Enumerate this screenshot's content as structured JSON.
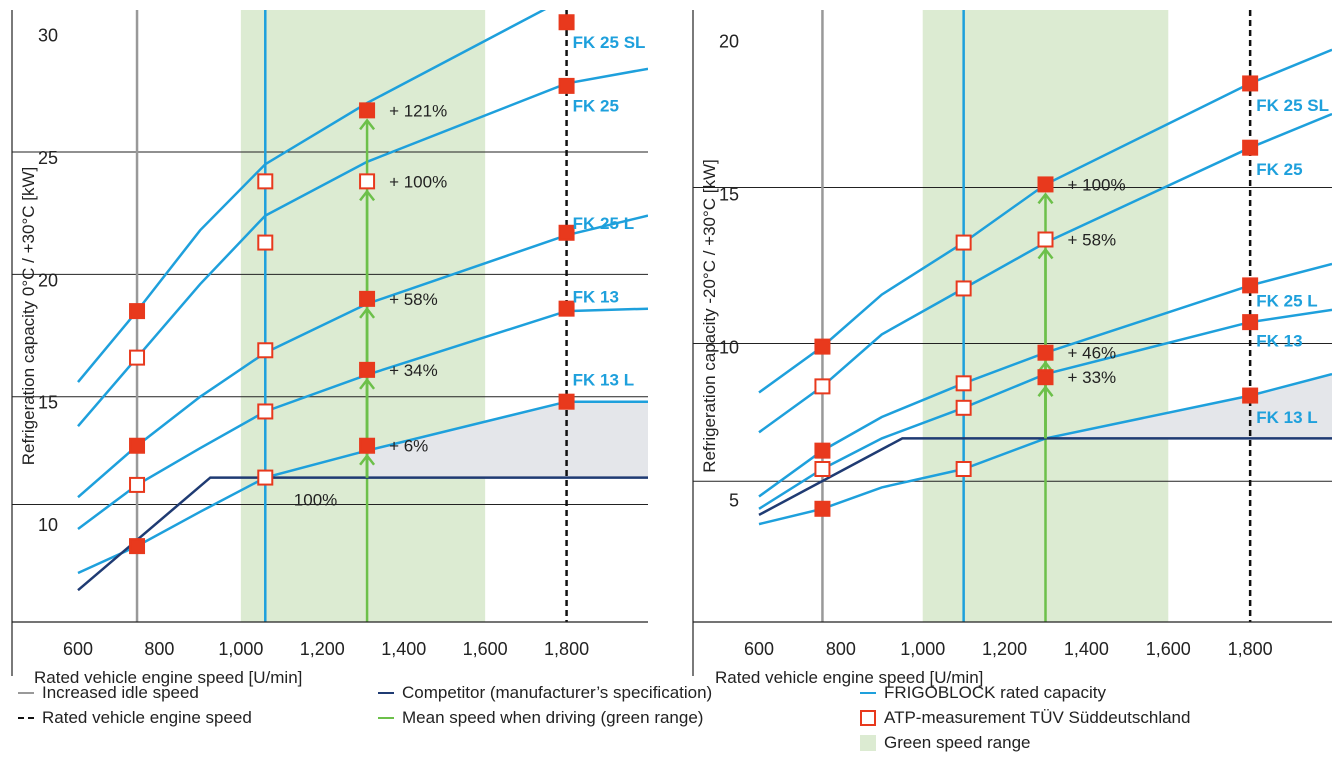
{
  "colors": {
    "frigoblock": "#1ea0dc",
    "competitor": "#1f3b73",
    "idle": "#999999",
    "rated": "#111111",
    "mean": "#6cc04a",
    "marker": "#e8391d",
    "green_range": "#dcebd2",
    "gap_fill": "#e4e6ea",
    "grid": "#222222",
    "label": "#1ea0dc"
  },
  "chart_data": [
    {
      "type": "line",
      "ylabel": "Refrigeration capacity 0°C / +30°C [kW]",
      "xlabel": "Rated vehicle engine speed [U/min]",
      "xlim": [
        450,
        2000
      ],
      "ylim": [
        6,
        31
      ],
      "x_ticks": [
        600,
        800,
        1000,
        1200,
        1400,
        1600,
        1800
      ],
      "x_tick_labels": [
        "600",
        "800",
        "1,000",
        "1,200",
        "1,400",
        "1,600",
        "1,800"
      ],
      "y_ticks": [
        10,
        15,
        20,
        25,
        30
      ],
      "y_tick_labels": [
        "10",
        "15",
        "20",
        "25",
        "30"
      ],
      "hgrid": [
        10.8,
        15.2,
        20.2,
        25.2
      ],
      "green_range": [
        1000,
        1600
      ],
      "idle_speed": 745,
      "mean_speed": 1310,
      "rated_speed": 1800,
      "frigoblock_line": 1060,
      "series": [
        {
          "name": "FK 25 SL",
          "x": [
            600,
            745,
            900,
            1060,
            1310,
            1800,
            2000
          ],
          "y": [
            15.8,
            18.7,
            22.0,
            24.7,
            27.2,
            31.5,
            33.0
          ]
        },
        {
          "name": "FK 25",
          "x": [
            600,
            745,
            900,
            1060,
            1310,
            1800,
            2000
          ],
          "y": [
            14.0,
            16.8,
            19.8,
            22.6,
            24.8,
            28.0,
            28.6
          ]
        },
        {
          "name": "FK 25 L",
          "x": [
            600,
            745,
            900,
            1060,
            1310,
            1800,
            2000
          ],
          "y": [
            11.1,
            13.2,
            15.2,
            17.0,
            19.0,
            21.8,
            22.6
          ]
        },
        {
          "name": "FK 13",
          "x": [
            600,
            745,
            900,
            1060,
            1310,
            1800,
            2000
          ],
          "y": [
            9.8,
            11.6,
            13.1,
            14.6,
            16.1,
            18.7,
            18.8
          ]
        },
        {
          "name": "FK 13 L",
          "x": [
            600,
            745,
            900,
            1060,
            1310,
            1800,
            2000
          ],
          "y": [
            8.0,
            9.1,
            10.5,
            11.9,
            13.0,
            15.0,
            15.0
          ]
        },
        {
          "name": "Competitor",
          "x": [
            600,
            925,
            2000
          ],
          "y": [
            7.3,
            11.9,
            11.9
          ]
        }
      ],
      "gap_polygon": {
        "x": [
          1310,
          1800,
          2000,
          2000,
          1310
        ],
        "y_top": [
          13.0,
          15.0,
          15.0
        ],
        "y_bottom": 11.9
      },
      "measurements": [
        {
          "x": 745,
          "y": 18.7,
          "filled": true
        },
        {
          "x": 745,
          "y": 16.8,
          "filled": false
        },
        {
          "x": 745,
          "y": 13.2,
          "filled": true
        },
        {
          "x": 745,
          "y": 11.6,
          "filled": false
        },
        {
          "x": 745,
          "y": 9.1,
          "filled": true
        },
        {
          "x": 1060,
          "y": 24.0,
          "filled": false
        },
        {
          "x": 1060,
          "y": 21.5,
          "filled": false
        },
        {
          "x": 1060,
          "y": 17.1,
          "filled": false
        },
        {
          "x": 1060,
          "y": 14.6,
          "filled": false
        },
        {
          "x": 1060,
          "y": 11.9,
          "filled": false
        },
        {
          "x": 1310,
          "y": 26.9,
          "filled": true
        },
        {
          "x": 1310,
          "y": 24.0,
          "filled": false
        },
        {
          "x": 1310,
          "y": 19.2,
          "filled": true
        },
        {
          "x": 1310,
          "y": 16.3,
          "filled": true
        },
        {
          "x": 1310,
          "y": 13.2,
          "filled": true
        },
        {
          "x": 1800,
          "y": 30.5,
          "filled": true
        },
        {
          "x": 1800,
          "y": 27.9,
          "filled": true
        },
        {
          "x": 1800,
          "y": 21.9,
          "filled": true
        },
        {
          "x": 1800,
          "y": 18.8,
          "filled": true
        },
        {
          "x": 1800,
          "y": 15.0,
          "filled": true
        }
      ],
      "percent_labels": [
        {
          "text": "+ 121%",
          "x": 1310,
          "y": 26.9
        },
        {
          "text": "+ 100%",
          "x": 1310,
          "y": 24.0
        },
        {
          "text": "+ 58%",
          "x": 1310,
          "y": 19.2
        },
        {
          "text": "+ 34%",
          "x": 1310,
          "y": 16.3
        },
        {
          "text": "+ 6%",
          "x": 1310,
          "y": 13.2
        }
      ],
      "reference_label": {
        "text": "100%",
        "x": 1130,
        "y": 11.0
      },
      "arrows": [
        {
          "x": 1310,
          "from": 11.9,
          "to": 13.2
        },
        {
          "x": 1310,
          "from": 11.9,
          "to": 16.3
        },
        {
          "x": 1310,
          "from": 11.9,
          "to": 19.2
        },
        {
          "x": 1310,
          "from": 11.9,
          "to": 24.0
        },
        {
          "x": 1310,
          "from": 11.9,
          "to": 26.9
        }
      ],
      "series_labels": [
        {
          "text": "FK 25 SL",
          "x": 1815,
          "y": 29.7
        },
        {
          "text": "FK 25",
          "x": 1815,
          "y": 27.1
        },
        {
          "text": "FK 25 L",
          "x": 1815,
          "y": 22.3
        },
        {
          "text": "FK 13",
          "x": 1815,
          "y": 19.3
        },
        {
          "text": "FK 13 L",
          "x": 1815,
          "y": 15.9
        }
      ]
    },
    {
      "type": "line",
      "ylabel": "Refrigeration capacity -20°C / +30°C [kW]",
      "xlabel": "Rated vehicle engine speed [U/min]",
      "xlim": [
        450,
        2000
      ],
      "ylim": [
        1,
        21
      ],
      "x_ticks": [
        600,
        800,
        1000,
        1200,
        1400,
        1600,
        1800
      ],
      "x_tick_labels": [
        "600",
        "800",
        "1,000",
        "1,200",
        "1,400",
        "1,600",
        "1,800"
      ],
      "y_ticks": [
        5,
        10,
        15,
        20
      ],
      "y_tick_labels": [
        "5",
        "10",
        "15",
        "20"
      ],
      "hgrid": [
        5.6,
        10.1,
        15.2
      ],
      "green_range": [
        1000,
        1600
      ],
      "idle_speed": 755,
      "mean_speed": 1300,
      "rated_speed": 1800,
      "frigoblock_line": 1100,
      "series": [
        {
          "name": "FK 25 SL",
          "x": [
            600,
            755,
            900,
            1100,
            1300,
            1800,
            2000
          ],
          "y": [
            8.5,
            10.0,
            11.7,
            13.4,
            15.3,
            18.6,
            19.7
          ]
        },
        {
          "name": "FK 25",
          "x": [
            600,
            755,
            900,
            1100,
            1300,
            1800,
            2000
          ],
          "y": [
            7.2,
            8.7,
            10.4,
            11.9,
            13.4,
            16.5,
            17.6
          ]
        },
        {
          "name": "FK 25 L",
          "x": [
            600,
            755,
            900,
            1100,
            1300,
            1800,
            2000
          ],
          "y": [
            5.1,
            6.6,
            7.7,
            8.8,
            9.8,
            12.0,
            12.7
          ]
        },
        {
          "name": "FK 13",
          "x": [
            600,
            755,
            900,
            1100,
            1300,
            1800,
            2000
          ],
          "y": [
            4.7,
            6.0,
            7.0,
            8.0,
            9.1,
            10.8,
            11.2
          ]
        },
        {
          "name": "FK 13 L",
          "x": [
            600,
            755,
            900,
            1100,
            1300,
            1800,
            2000
          ],
          "y": [
            4.2,
            4.7,
            5.4,
            6.0,
            7.0,
            8.4,
            9.1
          ]
        },
        {
          "name": "Competitor",
          "x": [
            600,
            950,
            2000
          ],
          "y": [
            4.5,
            7.0,
            7.0
          ]
        }
      ],
      "gap_polygon": {
        "x": [
          1300,
          1800,
          2000,
          2000,
          1300
        ],
        "y_top": [
          7.0,
          8.4,
          9.1
        ],
        "y_bottom": 7.0
      },
      "measurements": [
        {
          "x": 755,
          "y": 10.0,
          "filled": true
        },
        {
          "x": 755,
          "y": 8.7,
          "filled": false
        },
        {
          "x": 755,
          "y": 6.6,
          "filled": true
        },
        {
          "x": 755,
          "y": 6.0,
          "filled": false
        },
        {
          "x": 755,
          "y": 4.7,
          "filled": true
        },
        {
          "x": 1100,
          "y": 13.4,
          "filled": false
        },
        {
          "x": 1100,
          "y": 11.9,
          "filled": false
        },
        {
          "x": 1100,
          "y": 8.8,
          "filled": false
        },
        {
          "x": 1100,
          "y": 8.0,
          "filled": false
        },
        {
          "x": 1100,
          "y": 6.0,
          "filled": false
        },
        {
          "x": 1300,
          "y": 15.3,
          "filled": true
        },
        {
          "x": 1300,
          "y": 13.5,
          "filled": false
        },
        {
          "x": 1300,
          "y": 9.8,
          "filled": true
        },
        {
          "x": 1300,
          "y": 9.0,
          "filled": true
        },
        {
          "x": 1800,
          "y": 18.6,
          "filled": true
        },
        {
          "x": 1800,
          "y": 16.5,
          "filled": true
        },
        {
          "x": 1800,
          "y": 12.0,
          "filled": true
        },
        {
          "x": 1800,
          "y": 10.8,
          "filled": true
        },
        {
          "x": 1800,
          "y": 8.4,
          "filled": true
        }
      ],
      "percent_labels": [
        {
          "text": "+ 100%",
          "x": 1300,
          "y": 15.3
        },
        {
          "text": "+ 58%",
          "x": 1300,
          "y": 13.5
        },
        {
          "text": "+ 46%",
          "x": 1300,
          "y": 9.8
        },
        {
          "text": "+ 33%",
          "x": 1300,
          "y": 9.0
        }
      ],
      "reference_label": null,
      "arrows": [
        {
          "x": 1300,
          "from": 7.0,
          "to": 9.0
        },
        {
          "x": 1300,
          "from": 7.0,
          "to": 9.8
        },
        {
          "x": 1300,
          "from": 7.0,
          "to": 13.5
        },
        {
          "x": 1300,
          "from": 7.0,
          "to": 15.3
        }
      ],
      "series_labels": [
        {
          "text": "FK 25 SL",
          "x": 1815,
          "y": 17.9
        },
        {
          "text": "FK 25",
          "x": 1815,
          "y": 15.8
        },
        {
          "text": "FK 25 L",
          "x": 1815,
          "y": 11.5
        },
        {
          "text": "FK 13",
          "x": 1815,
          "y": 10.2
        },
        {
          "text": "FK 13 L",
          "x": 1815,
          "y": 7.7
        }
      ]
    }
  ],
  "legend": {
    "idle": "Increased idle speed",
    "rated": "Rated vehicle engine speed",
    "competitor": "Competitor (manufacturer’s specification)",
    "mean": "Mean speed when driving (green range)",
    "frigoblock": "FRIGOBLOCK rated capacity",
    "atp": "ATP-measurement TÜV Süddeutschland",
    "green": "Green speed range"
  }
}
